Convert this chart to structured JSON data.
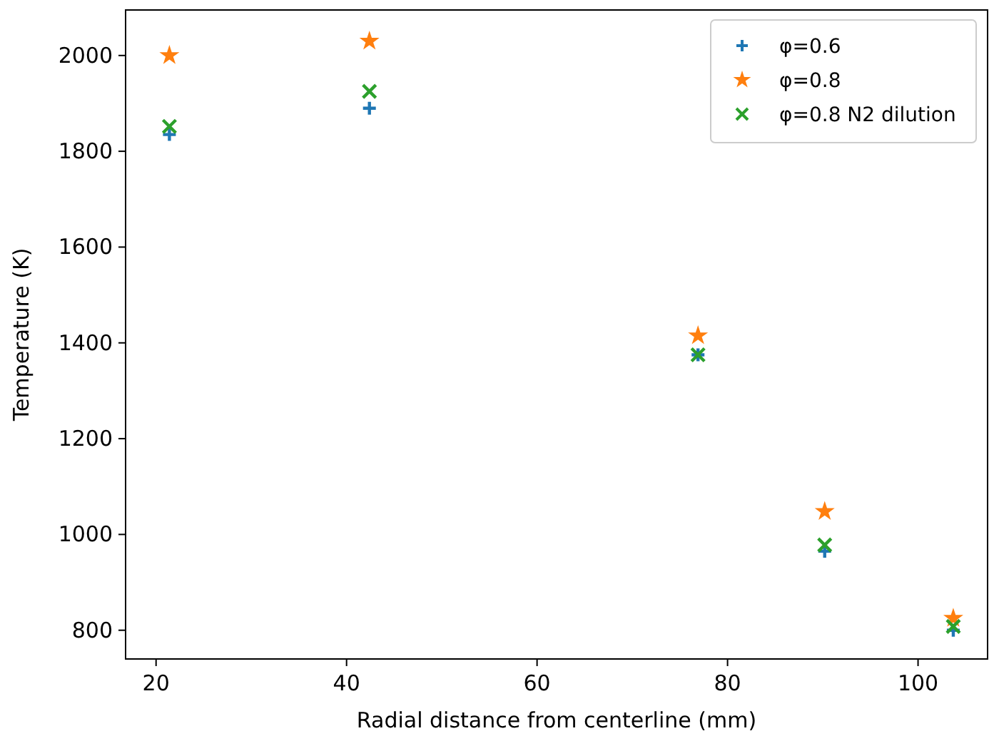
{
  "chart_data": {
    "type": "scatter",
    "xlabel": "Radial distance from centerline (mm)",
    "ylabel": "Temperature (K)",
    "x": [
      21.4,
      42.4,
      76.9,
      90.2,
      103.7
    ],
    "series": [
      {
        "name": "φ=0.6",
        "color": "#1f77b4",
        "marker": "cross",
        "values": [
          1835,
          1890,
          1375,
          965,
          800
        ]
      },
      {
        "name": "φ=0.8",
        "color": "#ff7f0e",
        "marker": "star",
        "values": [
          2000,
          2030,
          1415,
          1048,
          825
        ]
      },
      {
        "name": "φ=0.8 N2 dilution",
        "color": "#2ca02c",
        "marker": "x",
        "values": [
          1852,
          1925,
          1375,
          978,
          808
        ]
      }
    ],
    "xlim": [
      16.8,
      107.3
    ],
    "xticks": [
      20,
      40,
      60,
      80,
      100
    ],
    "ylim": [
      740,
      2095
    ],
    "yticks": [
      800,
      1000,
      1200,
      1400,
      1600,
      1800,
      2000
    ],
    "grid": false,
    "legend": "top right"
  }
}
